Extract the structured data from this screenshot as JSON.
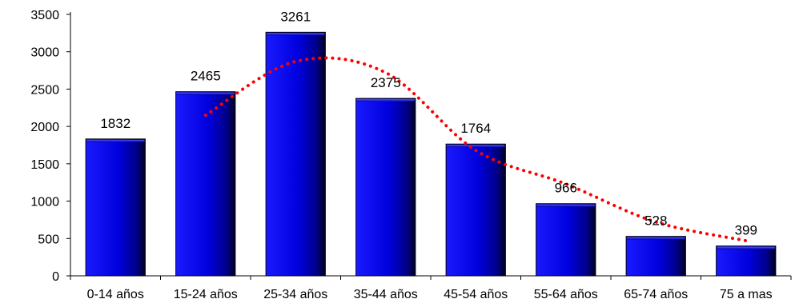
{
  "chart_data": {
    "type": "bar",
    "categories": [
      "0-14 años",
      "15-24 años",
      "25-34 años",
      "35-44 años",
      "45-54 años",
      "55-64 años",
      "65-74 años",
      "75 a mas"
    ],
    "values": [
      1832,
      2465,
      3261,
      2375,
      1764,
      966,
      528,
      399
    ],
    "data_labels": [
      "1832",
      "2465",
      "3261",
      "2375",
      "1764",
      "966",
      "528",
      "399"
    ],
    "yticks": [
      "0",
      "500",
      "1000",
      "1500",
      "2000",
      "2500",
      "3000",
      "3500"
    ],
    "ylim": [
      0,
      3500
    ],
    "title": "",
    "xlabel": "",
    "ylabel": "",
    "grid": false,
    "legend": "none",
    "trendline": {
      "style": "dotted",
      "color": "#ff0000",
      "points": [
        {
          "x": "15-24 años",
          "y": 2150
        },
        {
          "x": "25-34 años",
          "y": 2870
        },
        {
          "x": "35-44 años",
          "y": 2720
        },
        {
          "x": "45-54 años",
          "y": 1680
        },
        {
          "x": "55-64 años",
          "y": 1230
        },
        {
          "x": "65-74 años",
          "y": 720
        },
        {
          "x": "75 a mas",
          "y": 470
        }
      ]
    },
    "colors": {
      "bar_fill": "#0000cc",
      "bar_highlight": "#3a3aff",
      "bar_shade": "#000044",
      "axis": "#000000"
    }
  }
}
